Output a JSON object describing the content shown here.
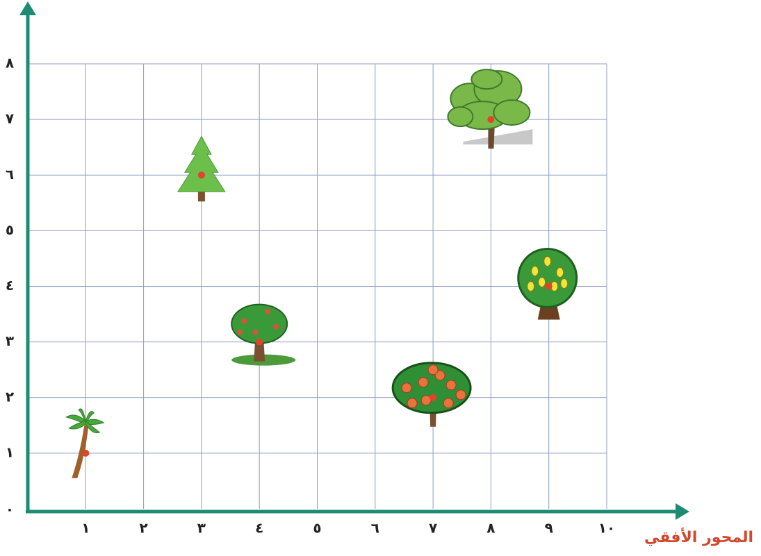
{
  "chart_data": {
    "type": "scatter",
    "axis_label": "المحور الأفقي",
    "x": [
      1,
      3,
      4,
      7,
      8,
      9
    ],
    "values": [
      1,
      6,
      3,
      2,
      7,
      4
    ],
    "xlim": [
      0,
      10
    ],
    "ylim": [
      0,
      8
    ],
    "xticks": [
      {
        "value": 1,
        "label": "١"
      },
      {
        "value": 2,
        "label": "٢"
      },
      {
        "value": 3,
        "label": "٣"
      },
      {
        "value": 4,
        "label": "٤"
      },
      {
        "value": 5,
        "label": "٥"
      },
      {
        "value": 6,
        "label": "٦"
      },
      {
        "value": 7,
        "label": "٧"
      },
      {
        "value": 8,
        "label": "٨"
      },
      {
        "value": 9,
        "label": "٩"
      },
      {
        "value": 10,
        "label": "١٠"
      }
    ],
    "yticks": [
      {
        "value": 0,
        "label": "٠"
      },
      {
        "value": 1,
        "label": "١"
      },
      {
        "value": 2,
        "label": "٢"
      },
      {
        "value": 3,
        "label": "٣"
      },
      {
        "value": 4,
        "label": "٤"
      },
      {
        "value": 5,
        "label": "٥"
      },
      {
        "value": 6,
        "label": "٦"
      },
      {
        "value": 7,
        "label": "٧"
      },
      {
        "value": 8,
        "label": "٨"
      }
    ],
    "grid": true,
    "axis_color": "#1e8c72",
    "grid_color": "#8c9cc0",
    "color": "#e3422b"
  }
}
